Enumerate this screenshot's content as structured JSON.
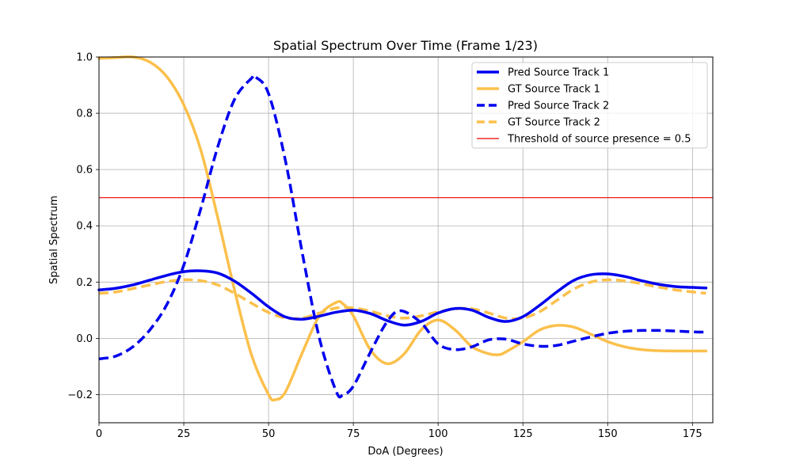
{
  "chart_data": {
    "type": "line",
    "title": "Spatial Spectrum Over Time (Frame 1/23)",
    "xlabel": "DoA (Degrees)",
    "ylabel": "Spatial Spectrum",
    "xlim": [
      0,
      181
    ],
    "ylim": [
      -0.3,
      1.0
    ],
    "xticks": [
      0,
      25,
      50,
      75,
      100,
      125,
      150,
      175
    ],
    "yticks": [
      -0.2,
      0.0,
      0.2,
      0.4,
      0.6,
      0.8,
      1.0
    ],
    "xtick_labels": [
      "0",
      "25",
      "50",
      "75",
      "100",
      "125",
      "150",
      "175"
    ],
    "ytick_labels": [
      "−0.2",
      "0.0",
      "0.2",
      "0.4",
      "0.6",
      "0.8",
      "1.0"
    ],
    "grid": true,
    "legend_position": "top-right",
    "series": [
      {
        "name": "Pred Source Track 1",
        "color": "#0000ee",
        "style": "solid",
        "x": [
          0,
          5,
          10,
          15,
          20,
          25,
          30,
          35,
          40,
          45,
          50,
          55,
          60,
          65,
          70,
          75,
          80,
          85,
          90,
          95,
          100,
          105,
          110,
          115,
          120,
          125,
          130,
          135,
          140,
          145,
          150,
          155,
          160,
          165,
          170,
          175,
          179
        ],
        "y": [
          0.172,
          0.178,
          0.19,
          0.207,
          0.224,
          0.237,
          0.24,
          0.232,
          0.203,
          0.16,
          0.112,
          0.076,
          0.068,
          0.079,
          0.093,
          0.1,
          0.088,
          0.063,
          0.047,
          0.06,
          0.09,
          0.106,
          0.1,
          0.074,
          0.06,
          0.077,
          0.118,
          0.165,
          0.206,
          0.226,
          0.229,
          0.22,
          0.205,
          0.192,
          0.184,
          0.181,
          0.179
        ]
      },
      {
        "name": "GT Source Track 1",
        "color": "#fbc04c",
        "style": "solid",
        "x": [
          0,
          5,
          10,
          15,
          20,
          25,
          30,
          35,
          40,
          45,
          50,
          52,
          55,
          60,
          65,
          70,
          72,
          75,
          80,
          85,
          90,
          95,
          100,
          105,
          110,
          115,
          118,
          120,
          125,
          130,
          135,
          140,
          145,
          150,
          155,
          160,
          165,
          170,
          175,
          179
        ],
        "y": [
          0.995,
          0.998,
          1.0,
          0.982,
          0.93,
          0.83,
          0.67,
          0.43,
          0.17,
          -0.06,
          -0.2,
          -0.218,
          -0.19,
          -0.05,
          0.08,
          0.128,
          0.122,
          0.08,
          -0.04,
          -0.09,
          -0.055,
          0.03,
          0.065,
          0.03,
          -0.03,
          -0.055,
          -0.058,
          -0.048,
          -0.012,
          0.03,
          0.046,
          0.04,
          0.015,
          -0.012,
          -0.03,
          -0.04,
          -0.044,
          -0.045,
          -0.045,
          -0.045
        ]
      },
      {
        "name": "Pred Source Track 2",
        "color": "#0000ee",
        "style": "dashed",
        "x": [
          0,
          5,
          10,
          15,
          20,
          25,
          30,
          35,
          40,
          45,
          46,
          50,
          55,
          60,
          65,
          70,
          72,
          75,
          80,
          85,
          89,
          95,
          100,
          105,
          110,
          115,
          120,
          125,
          130,
          135,
          140,
          145,
          150,
          155,
          160,
          165,
          170,
          175,
          179
        ],
        "y": [
          -0.073,
          -0.063,
          -0.03,
          0.03,
          0.12,
          0.26,
          0.46,
          0.68,
          0.85,
          0.925,
          0.93,
          0.87,
          0.63,
          0.3,
          0.0,
          -0.19,
          -0.2,
          -0.17,
          -0.05,
          0.06,
          0.098,
          0.055,
          -0.02,
          -0.04,
          -0.03,
          -0.005,
          -0.003,
          -0.02,
          -0.028,
          -0.025,
          -0.01,
          0.005,
          0.018,
          0.025,
          0.028,
          0.028,
          0.026,
          0.023,
          0.022
        ]
      },
      {
        "name": "GT Source Track 2",
        "color": "#fbc04c",
        "style": "dashed",
        "x": [
          0,
          5,
          10,
          15,
          20,
          25,
          30,
          35,
          40,
          45,
          50,
          55,
          60,
          65,
          70,
          75,
          80,
          85,
          90,
          95,
          100,
          105,
          110,
          115,
          120,
          125,
          130,
          135,
          140,
          145,
          150,
          155,
          160,
          165,
          170,
          175,
          179
        ],
        "y": [
          0.16,
          0.165,
          0.177,
          0.19,
          0.202,
          0.208,
          0.205,
          0.19,
          0.16,
          0.125,
          0.092,
          0.072,
          0.072,
          0.09,
          0.108,
          0.108,
          0.097,
          0.08,
          0.072,
          0.08,
          0.094,
          0.105,
          0.105,
          0.09,
          0.072,
          0.072,
          0.095,
          0.135,
          0.175,
          0.2,
          0.208,
          0.204,
          0.194,
          0.182,
          0.172,
          0.165,
          0.16
        ]
      }
    ],
    "threshold": {
      "name": "Threshold of source presence = 0.5",
      "value": 0.5,
      "color": "#ee0000",
      "style": "thin-solid"
    }
  }
}
